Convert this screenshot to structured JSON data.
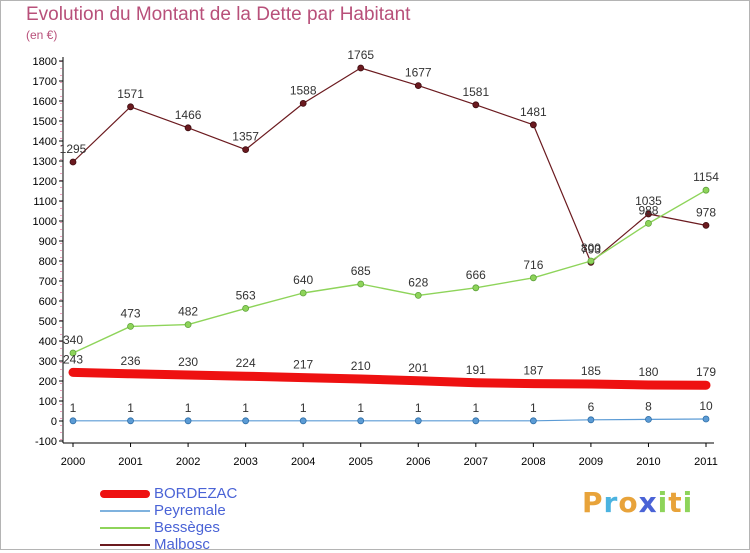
{
  "chart_data": {
    "type": "line",
    "title": "Evolution du Montant de la Dette par Habitant",
    "unit_label": "(en €)",
    "xlabel": "",
    "ylabel": "",
    "x": [
      "2000",
      "2001",
      "2002",
      "2003",
      "2004",
      "2005",
      "2006",
      "2007",
      "2008",
      "2009",
      "2010",
      "2011"
    ],
    "ylim": [
      -100,
      1800
    ],
    "yticks": [
      "-100",
      "0",
      "100",
      "200",
      "300",
      "400",
      "500",
      "600",
      "700",
      "800",
      "900",
      "1000",
      "1100",
      "1200",
      "1300",
      "1400",
      "1500",
      "1600",
      "1700",
      "1800"
    ],
    "grid": false,
    "legend_position": "bottom-left",
    "series": [
      {
        "name": "Malbosc",
        "color": "#6b1a1f",
        "values": [
          1295,
          1571,
          1466,
          1357,
          1588,
          1765,
          1677,
          1581,
          1481,
          793,
          1035,
          978
        ],
        "labels": [
          "1295",
          "1571",
          "1466",
          "1357",
          "1588",
          "1765",
          "1677",
          "1581",
          "1481",
          "793",
          "1035",
          "978"
        ]
      },
      {
        "name": "Bessèges",
        "color": "#8ed45a",
        "values": [
          340,
          473,
          482,
          563,
          640,
          685,
          628,
          666,
          716,
          800,
          988,
          1154
        ],
        "labels": [
          "340",
          "473",
          "482",
          "563",
          "640",
          "685",
          "628",
          "666",
          "716",
          "800",
          "988",
          "1154"
        ]
      },
      {
        "name": "BORDEZAC",
        "color": "#ee1111",
        "values": [
          243,
          236,
          230,
          224,
          217,
          210,
          201,
          191,
          187,
          185,
          180,
          179
        ],
        "labels": [
          "243",
          "236",
          "230",
          "224",
          "217",
          "210",
          "201",
          "191",
          "187",
          "185",
          "180",
          "179"
        ]
      },
      {
        "name": "Peyremale",
        "color": "#5b9bd5",
        "values": [
          1,
          1,
          1,
          1,
          1,
          1,
          1,
          1,
          1,
          6,
          8,
          10
        ],
        "labels": [
          "1",
          "1",
          "1",
          "1",
          "1",
          "1",
          "1",
          "1",
          "1",
          "6",
          "8",
          "10"
        ]
      }
    ]
  },
  "legend": {
    "items": [
      {
        "label": "BORDEZAC",
        "color": "#ee1111"
      },
      {
        "label": "Peyremale",
        "color": "#7fb2de"
      },
      {
        "label": "Bessèges",
        "color": "#8ed45a"
      },
      {
        "label": "Malbosc",
        "color": "#6b1a1f"
      }
    ]
  },
  "brand": {
    "letters": [
      {
        "char": "P",
        "color": "#e8a33a"
      },
      {
        "char": "r",
        "color": "#4bb3e0"
      },
      {
        "char": "o",
        "color": "#e8a33a"
      },
      {
        "char": "x",
        "color": "#4a63d6"
      },
      {
        "char": "i",
        "color": "#8ed45a"
      },
      {
        "char": "t",
        "color": "#e8a33a"
      },
      {
        "char": "i",
        "color": "#8ed45a"
      }
    ]
  }
}
